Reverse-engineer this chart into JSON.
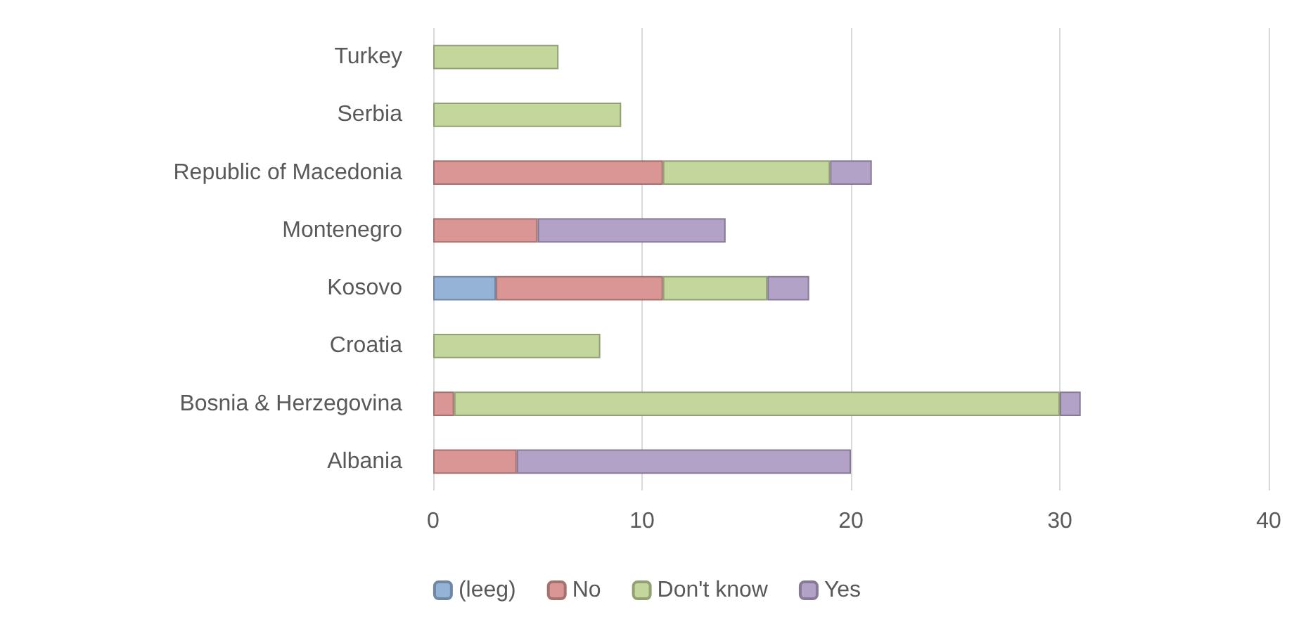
{
  "chart_data": {
    "type": "bar",
    "orientation": "horizontal",
    "stacked": true,
    "categories": [
      "Turkey",
      "Serbia",
      "Republic of Macedonia",
      "Montenegro",
      "Kosovo",
      "Croatia",
      "Bosnia & Herzegovina",
      "Albania"
    ],
    "series": [
      {
        "name": "(leeg)",
        "color": "#95b3d7",
        "values": [
          null,
          null,
          null,
          null,
          3,
          null,
          null,
          null
        ]
      },
      {
        "name": "No",
        "color": "#da9694",
        "values": [
          null,
          null,
          11,
          5,
          8,
          null,
          1,
          4
        ]
      },
      {
        "name": "Don't know",
        "color": "#c3d69b",
        "values": [
          6,
          9,
          8,
          null,
          5,
          8,
          29,
          null
        ]
      },
      {
        "name": "Yes",
        "color": "#b3a2c7",
        "values": [
          null,
          null,
          2,
          9,
          2,
          null,
          1,
          16
        ]
      }
    ],
    "xlim": [
      0,
      40
    ],
    "xticks": [
      0,
      10,
      20,
      30,
      40
    ],
    "grid": "x",
    "legend": "bottom"
  }
}
